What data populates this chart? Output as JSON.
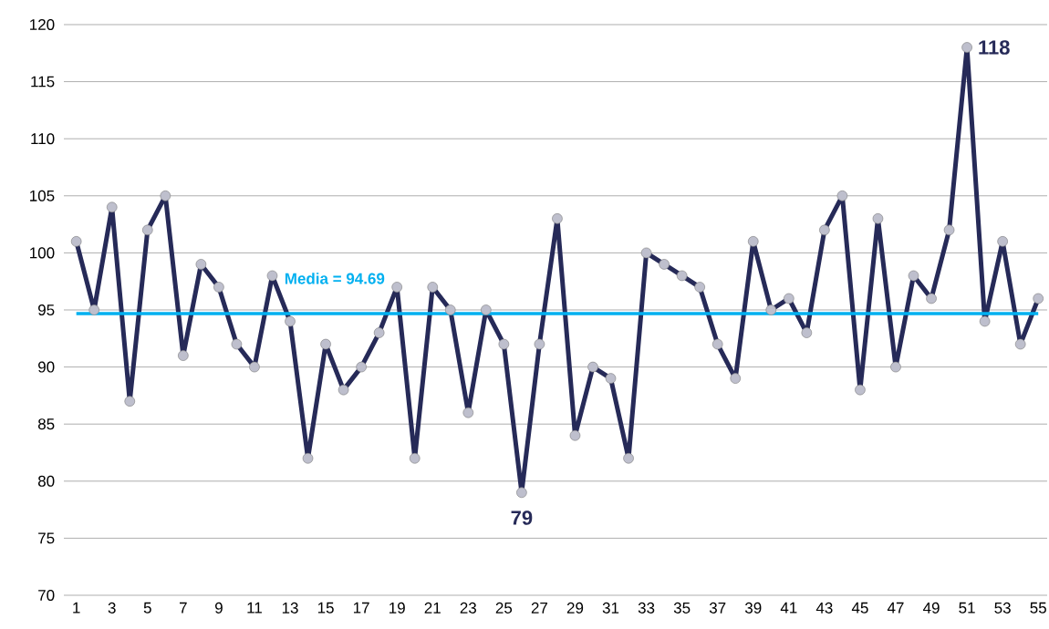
{
  "chart_data": {
    "type": "line",
    "categories": [
      "1",
      null,
      "3",
      null,
      "5",
      null,
      "7",
      null,
      "9",
      null,
      "11",
      null,
      "13",
      null,
      "15",
      null,
      "17",
      null,
      "19",
      null,
      "21",
      null,
      "23",
      null,
      "25",
      null,
      "27",
      null,
      "29",
      null,
      "31",
      null,
      "33",
      null,
      "35",
      null,
      "37",
      null,
      "39",
      null,
      "41",
      null,
      "43",
      null,
      "45",
      null,
      "47",
      null,
      "49",
      null,
      "51",
      null,
      "53",
      null,
      "55"
    ],
    "series": [
      {
        "color": "#262a58",
        "values": [
          101,
          95,
          104,
          87,
          102,
          105,
          91,
          99,
          97,
          92,
          90,
          98,
          94,
          82,
          92,
          88,
          90,
          93,
          97,
          82,
          97,
          95,
          86,
          95,
          92,
          79,
          92,
          103,
          84,
          90,
          89,
          82,
          100,
          99,
          98,
          97,
          92,
          89,
          101,
          95,
          96,
          93,
          102,
          105,
          88,
          103,
          90,
          98,
          96,
          102,
          118,
          94,
          101,
          92,
          96
        ],
        "value_labels": [
          null,
          null,
          null,
          null,
          null,
          null,
          null,
          null,
          null,
          null,
          null,
          null,
          null,
          null,
          null,
          null,
          null,
          null,
          null,
          null,
          null,
          null,
          null,
          null,
          null,
          "79",
          null,
          null,
          null,
          null,
          null,
          null,
          null,
          null,
          null,
          null,
          null,
          null,
          null,
          null,
          null,
          null,
          null,
          null,
          null,
          null,
          null,
          null,
          null,
          null,
          "118",
          null,
          null,
          null,
          null
        ]
      }
    ],
    "ylim": [
      70,
      120
    ],
    "yticks": [
      70,
      75,
      80,
      85,
      90,
      95,
      100,
      105,
      110,
      115,
      120
    ],
    "grid": "y",
    "marker": "circle",
    "line_style": "solid",
    "ref_lines": [
      {
        "axis": "y",
        "value": 94.69,
        "label": "Media = 94.69",
        "color": "#00b0f0"
      }
    ]
  }
}
